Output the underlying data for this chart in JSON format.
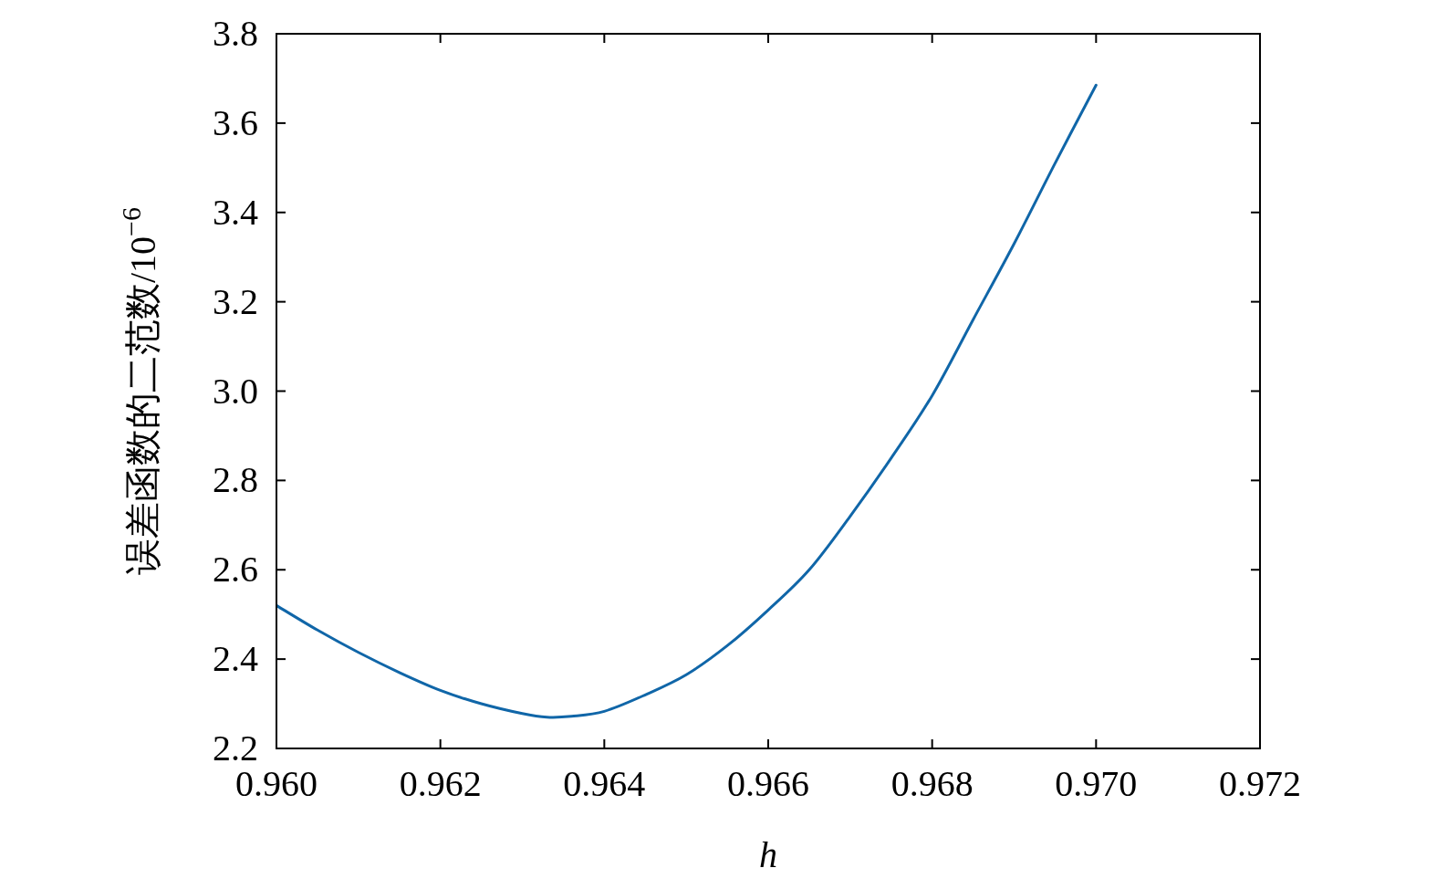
{
  "chart_data": {
    "type": "line",
    "xlabel": "h",
    "ylabel": "误差函数的二范数/10$^{−6}$",
    "xlim": [
      0.96,
      0.972
    ],
    "ylim": [
      2.2,
      3.8
    ],
    "xticks": [
      {
        "value": 0.96,
        "label": "0.960"
      },
      {
        "value": 0.962,
        "label": "0.962"
      },
      {
        "value": 0.964,
        "label": "0.964"
      },
      {
        "value": 0.966,
        "label": "0.966"
      },
      {
        "value": 0.968,
        "label": "0.968"
      },
      {
        "value": 0.97,
        "label": "0.970"
      },
      {
        "value": 0.972,
        "label": "0.972"
      }
    ],
    "yticks": [
      2.2,
      2.4,
      2.6,
      2.8,
      {
        "value": 3.0,
        "label": "3.0"
      },
      3.2,
      3.4,
      3.6,
      3.8
    ],
    "grid": false,
    "series": [
      {
        "color": "#1066a8",
        "line_style": "solid",
        "x": [
          0.96,
          0.9605,
          0.961,
          0.9615,
          0.962,
          0.9625,
          0.963,
          0.9633,
          0.9636,
          0.964,
          0.9645,
          0.965,
          0.9655,
          0.966,
          0.9665,
          0.967,
          0.9675,
          0.968,
          0.9685,
          0.969,
          0.9695,
          0.97
        ],
        "values": [
          2.52,
          2.465,
          2.415,
          2.37,
          2.33,
          2.3,
          2.278,
          2.27,
          2.272,
          2.283,
          2.32,
          2.365,
          2.43,
          2.51,
          2.6,
          2.72,
          2.85,
          2.99,
          3.16,
          3.33,
          3.51,
          3.685
        ]
      }
    ]
  }
}
